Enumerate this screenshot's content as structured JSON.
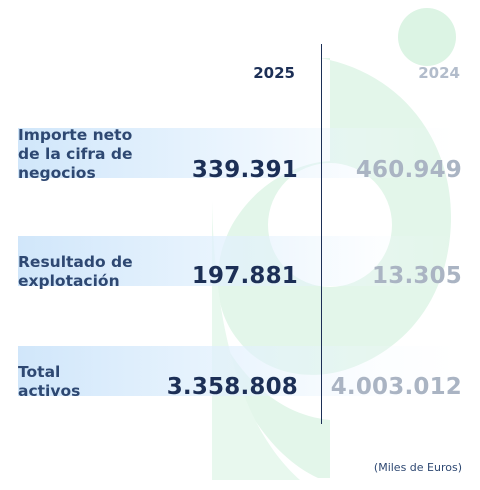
{
  "years": {
    "current": "2025",
    "previous": "2024"
  },
  "metrics": [
    {
      "label": "Importe neto de la cifra de negocios",
      "current": "339.391",
      "previous": "460.949"
    },
    {
      "label": "Resultado de explotación",
      "current": "197.881",
      "previous": "13.305"
    },
    {
      "label": "Total activos",
      "current": "3.358.808",
      "previous": "4.003.012"
    }
  ],
  "units_note": "(Miles de Euros)",
  "colors": {
    "navy": "#1c2f56",
    "label_blue": "#2e4872",
    "muted_gray": "#aab4c3",
    "mint": "#dff3e6",
    "band_blue": "#cfe5fa"
  },
  "decor": {
    "background_icon": "mint-logo-watermark"
  }
}
